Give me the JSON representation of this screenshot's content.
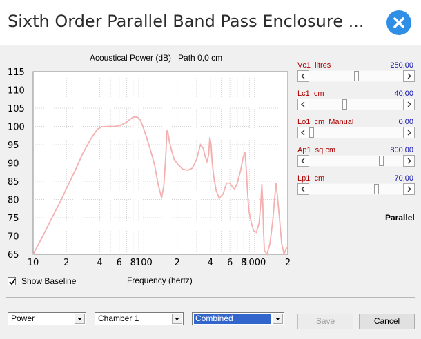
{
  "window": {
    "title": "Sixth Order Parallel Band Pass Enclosure ..."
  },
  "chart_data": {
    "type": "line",
    "title": "Acoustical Power (dB)   Path 0,0 cm",
    "xlabel": "Frequency (hertz)",
    "ylabel": "",
    "xscale": "log",
    "xlim": [
      10,
      2000
    ],
    "ylim": [
      65,
      115
    ],
    "x_ticks": [
      10,
      20,
      40,
      60,
      80,
      100,
      200,
      400,
      600,
      800,
      1000,
      2000
    ],
    "x_tick_labels": [
      "10",
      "2",
      "4",
      "6",
      "8",
      "100",
      "2",
      "4",
      "6",
      "8",
      "1000",
      "2"
    ],
    "y_ticks": [
      65,
      70,
      75,
      80,
      85,
      90,
      95,
      100,
      105,
      110,
      115
    ],
    "y_tick_labels": [
      "65",
      "70",
      "75",
      "80",
      "85",
      "90",
      "95",
      "100",
      "105",
      "110",
      "115"
    ],
    "grid": true,
    "line_color": "#f4b0b0",
    "series": [
      {
        "x": [
          10,
          12,
          14,
          16,
          18,
          20,
          24,
          28,
          33,
          38,
          42,
          48,
          55,
          62,
          70,
          76,
          82,
          88,
          93,
          98,
          106,
          115,
          125,
          135,
          145,
          152,
          158,
          162,
          165,
          170,
          178,
          188,
          205,
          225,
          250,
          275,
          300,
          325,
          345,
          360,
          372,
          385,
          395,
          405,
          415,
          430,
          450,
          480,
          520,
          560,
          600,
          630,
          660,
          700,
          750,
          790,
          820,
          845,
          865,
          890,
          930,
          980,
          1040,
          1100,
          1140,
          1165,
          1190,
          1205,
          1230,
          1300,
          1380,
          1460,
          1530,
          1570,
          1610,
          1680,
          1760,
          1850,
          1930,
          2000
        ],
        "y": [
          65,
          69.5,
          73.5,
          77,
          80,
          83,
          88,
          92.5,
          96.5,
          99.2,
          99.9,
          100,
          100,
          100.3,
          101.2,
          102.1,
          102.6,
          102.5,
          101.8,
          100,
          97,
          93.5,
          89.5,
          84,
          80.4,
          84,
          92,
          98.8,
          98.5,
          96,
          93.5,
          91,
          89.5,
          88.3,
          88,
          88.6,
          91,
          95,
          94,
          91.5,
          90.4,
          92,
          97,
          95,
          90,
          86,
          82.5,
          80.3,
          81.5,
          84.5,
          84.5,
          83.5,
          82.8,
          84.5,
          88,
          91.5,
          93,
          88,
          82,
          77,
          74,
          71.5,
          71,
          73.5,
          79,
          84.2,
          79,
          72,
          66,
          65,
          68,
          74,
          81,
          84.5,
          81,
          75,
          68,
          65,
          66.5,
          67
        ]
      }
    ]
  },
  "show_baseline": {
    "label": "Show Baseline",
    "checked": true
  },
  "parallel_label": "Parallel",
  "controls": [
    {
      "label": "Vc1  litres",
      "value": "250,00",
      "position": 0.5
    },
    {
      "label": "Lc1  cm",
      "value": "40,00",
      "position": 0.37
    },
    {
      "label": "Lo1  cm  Manual",
      "value": "0,00",
      "position": 0.0
    },
    {
      "label": "Ap1  sq cm",
      "value": "800,00",
      "position": 0.78
    },
    {
      "label": "Lp1  cm",
      "value": "70,00",
      "position": 0.73
    }
  ],
  "footer": {
    "combo_mode": "Power",
    "combo_chamber": "Chamber 1",
    "combo_output": "Combined",
    "save_label": "Save",
    "cancel_label": "Cancel"
  }
}
